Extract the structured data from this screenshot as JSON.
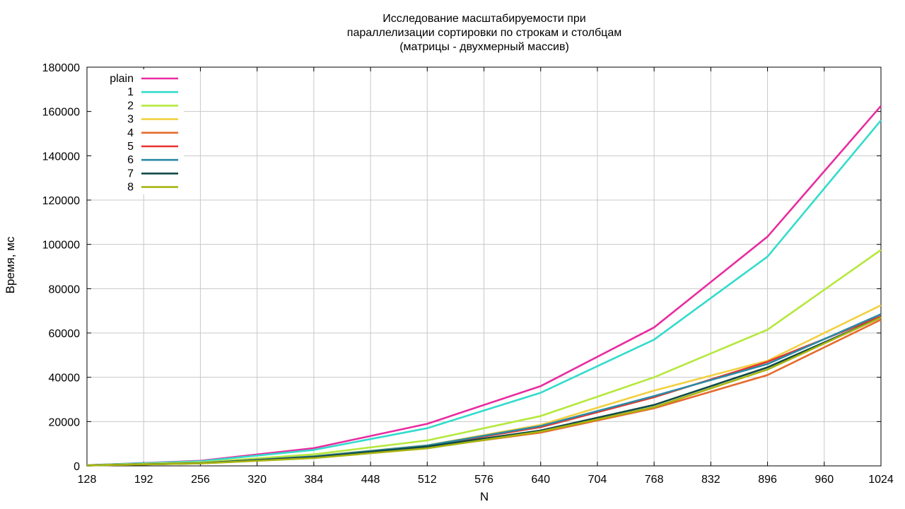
{
  "chart_data": {
    "type": "line",
    "title_lines": [
      "Исследование масштабируемости при",
      "параллелизации сортировки по строкам и столбцам",
      "(матрицы - двухмерный массив)"
    ],
    "xlabel": "N",
    "ylabel": "Время, мс",
    "xlim": [
      128,
      1024
    ],
    "ylim": [
      0,
      180000
    ],
    "xticks": [
      128,
      192,
      256,
      320,
      384,
      448,
      512,
      576,
      640,
      704,
      768,
      832,
      896,
      960,
      1024
    ],
    "yticks": [
      0,
      20000,
      40000,
      60000,
      80000,
      100000,
      120000,
      140000,
      160000,
      180000
    ],
    "grid": true,
    "legend_position": "top-left",
    "x": [
      128,
      256,
      384,
      512,
      640,
      768,
      896,
      1024
    ],
    "series": [
      {
        "name": "plain",
        "color": "#e82ca0",
        "values": [
          300,
          2300,
          8000,
          19000,
          36000,
          62500,
          103500,
          162500
        ]
      },
      {
        "name": "1",
        "color": "#33dbcc",
        "values": [
          300,
          2100,
          7200,
          17000,
          33000,
          57000,
          94500,
          156000
        ]
      },
      {
        "name": "2",
        "color": "#b5e83c",
        "values": [
          250,
          1600,
          5200,
          11500,
          22500,
          40000,
          61500,
          97500
        ]
      },
      {
        "name": "3",
        "color": "#f2d040",
        "values": [
          200,
          1300,
          4400,
          9300,
          18500,
          34000,
          47500,
          72500
        ]
      },
      {
        "name": "4",
        "color": "#e66a2c",
        "values": [
          200,
          1150,
          3800,
          8200,
          15000,
          26000,
          41000,
          66000
        ]
      },
      {
        "name": "5",
        "color": "#e8322c",
        "values": [
          200,
          1200,
          4200,
          9000,
          17500,
          31000,
          47000,
          67500
        ]
      },
      {
        "name": "6",
        "color": "#2a8aa6",
        "values": [
          200,
          1200,
          4300,
          9200,
          18000,
          31500,
          46000,
          68500
        ]
      },
      {
        "name": "7",
        "color": "#0f4a46",
        "values": [
          200,
          1150,
          4000,
          8700,
          16000,
          27500,
          44500,
          67000
        ]
      },
      {
        "name": "8",
        "color": "#a8b410",
        "values": [
          200,
          1100,
          3500,
          7900,
          15500,
          26500,
          43500,
          67000
        ]
      }
    ]
  }
}
